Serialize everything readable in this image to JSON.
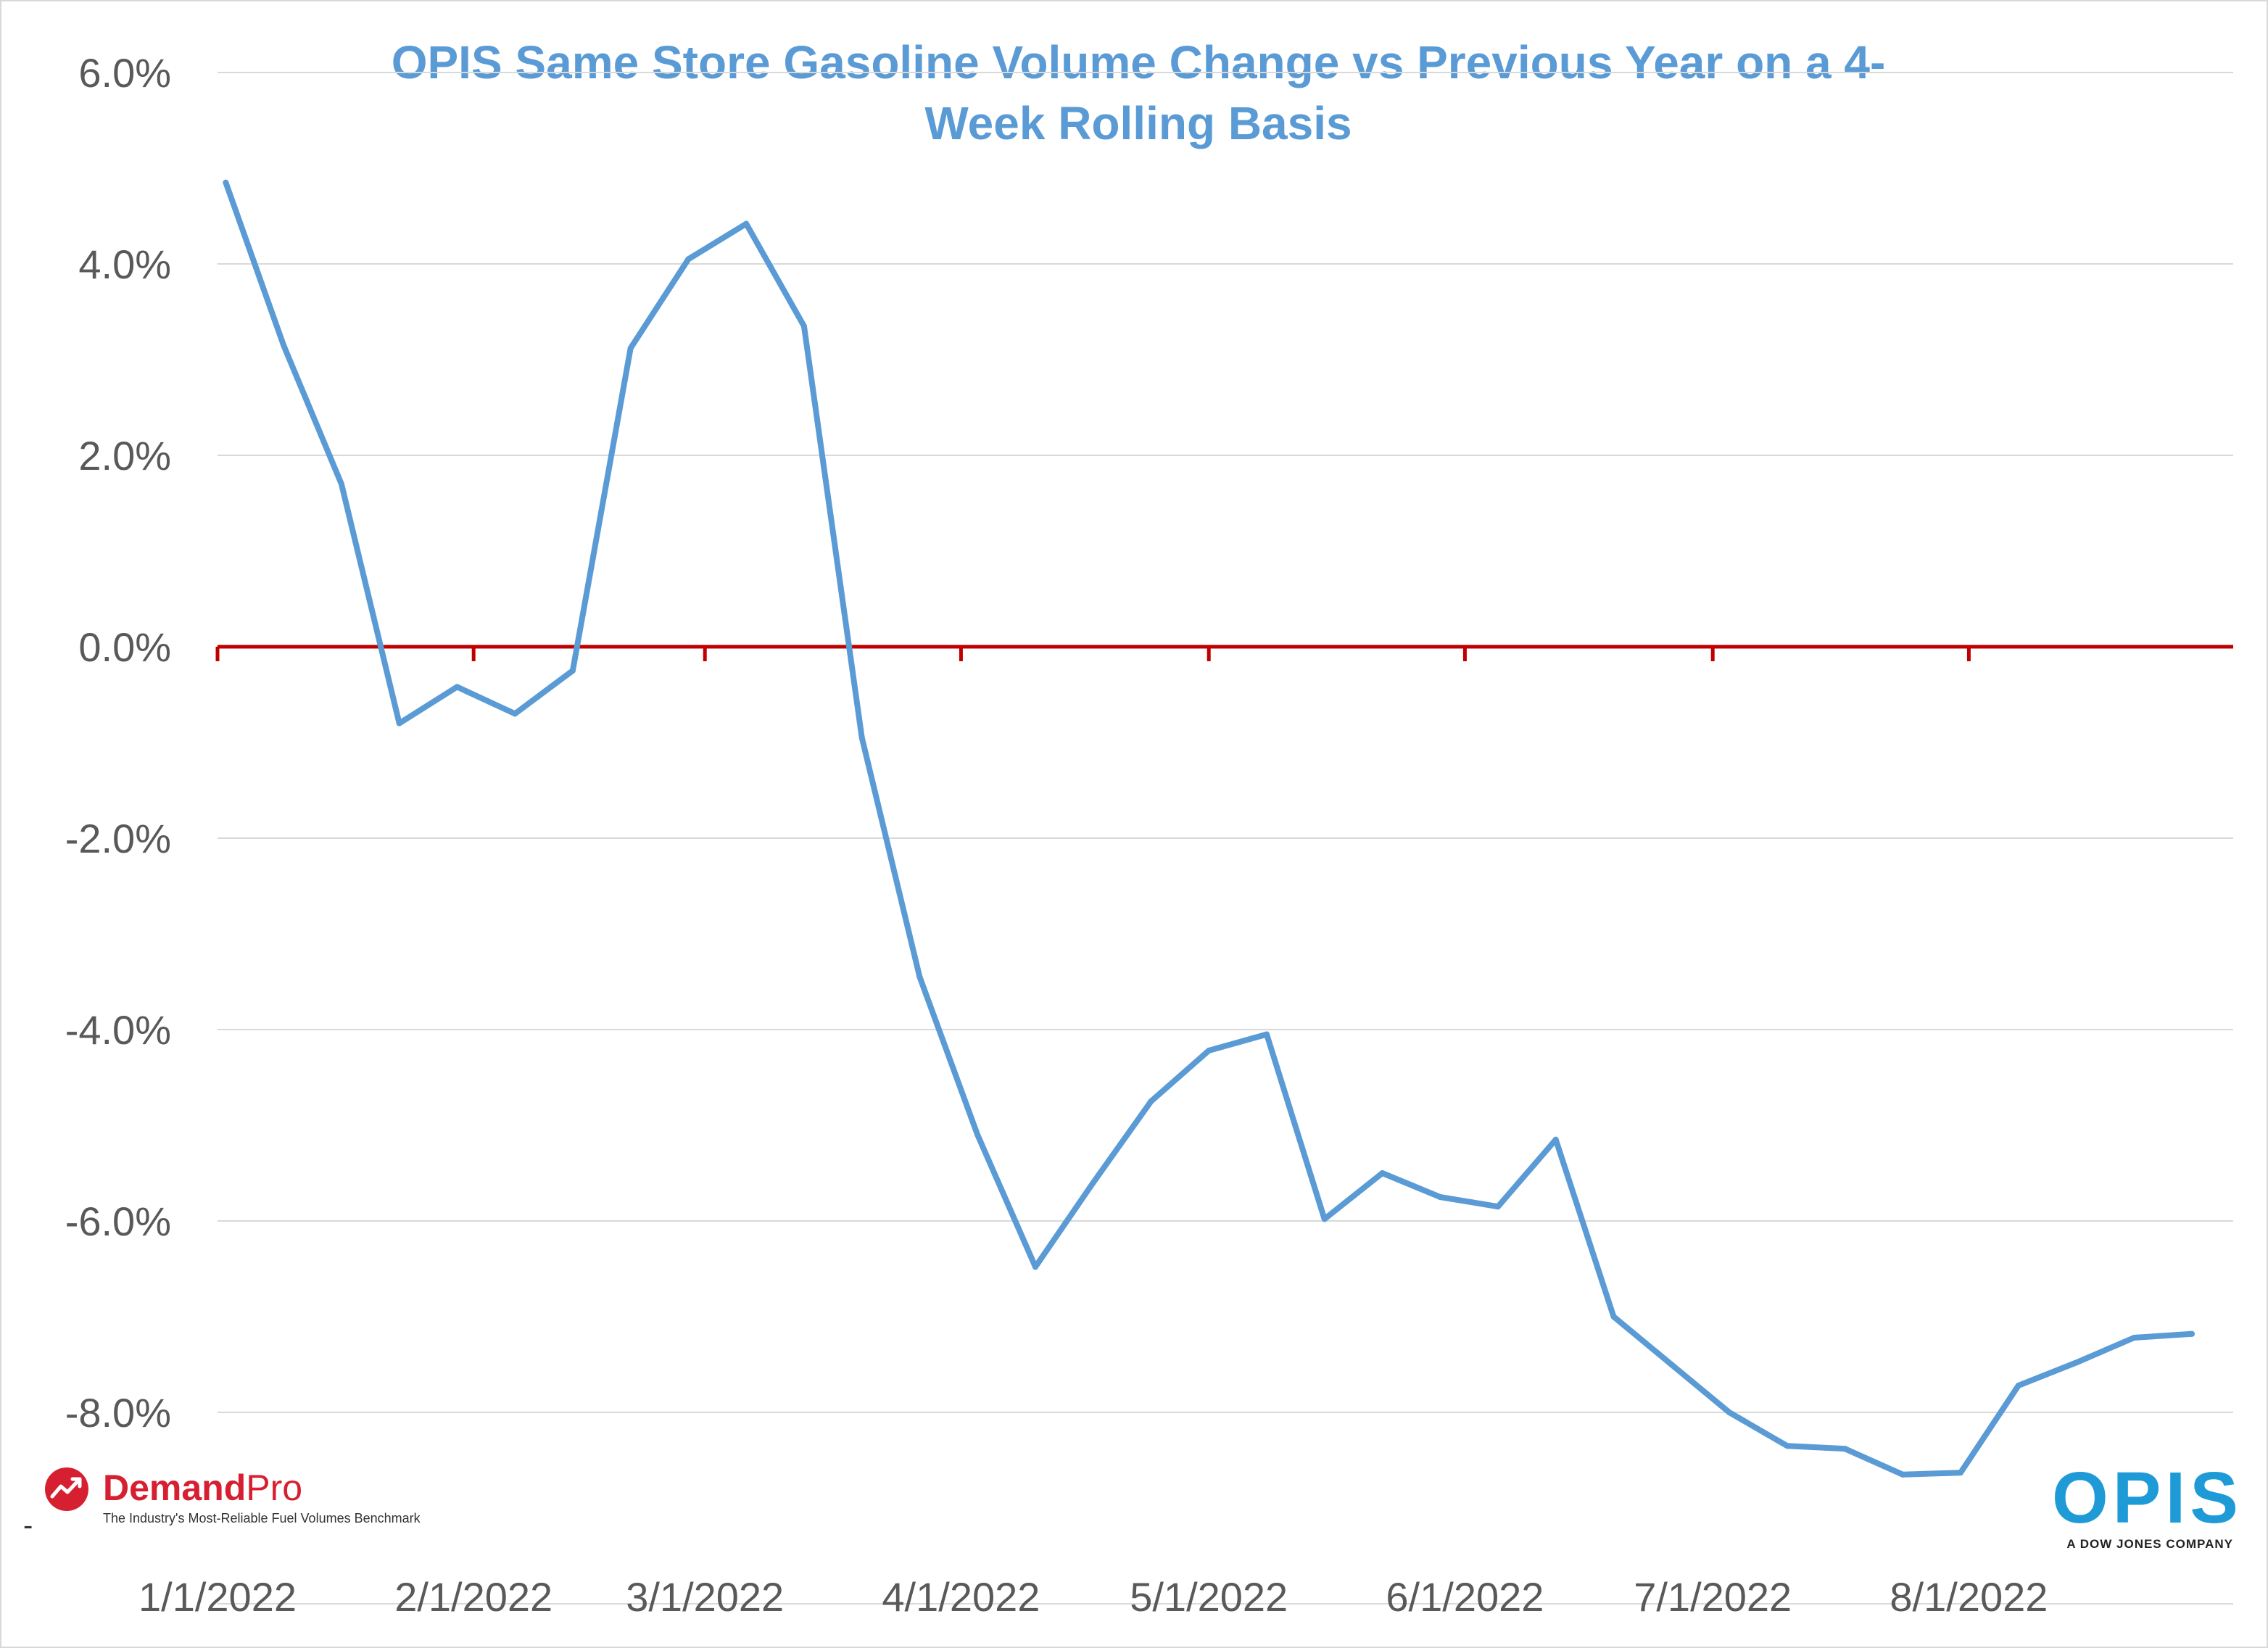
{
  "chart_data": {
    "type": "line",
    "title": "OPIS Same Store Gasoline Volume Change vs Previous Year on a 4-Week Rolling Basis",
    "title_lines": [
      "OPIS Same Store Gasoline Volume Change vs Previous Year on a 4-",
      "Week Rolling Basis"
    ],
    "xlabel": "",
    "ylabel": "",
    "ylim": [
      -10.0,
      6.0
    ],
    "yticks": [
      6.0,
      4.0,
      2.0,
      0.0,
      -2.0,
      -4.0,
      -6.0,
      -8.0
    ],
    "ytick_labels": [
      "6.0%",
      "4.0%",
      "2.0%",
      "0.0%",
      "-2.0%",
      "-4.0%",
      "-6.0%",
      "-8.0%"
    ],
    "xlim": [
      "2022-01-01",
      "2022-09-02"
    ],
    "xtick_labels": [
      "1/1/2022",
      "2/1/2022",
      "3/1/2022",
      "4/1/2022",
      "5/1/2022",
      "6/1/2022",
      "7/1/2022",
      "8/1/2022"
    ],
    "xtick_dates": [
      "2022-01-01",
      "2022-02-01",
      "2022-03-01",
      "2022-04-01",
      "2022-05-01",
      "2022-06-01",
      "2022-07-01",
      "2022-08-01"
    ],
    "grid": true,
    "legend": "none",
    "zero_line_color": "#c00000",
    "series": [
      {
        "color": "#5b9bd5",
        "x": [
          "2022-01-02",
          "2022-01-09",
          "2022-01-16",
          "2022-01-23",
          "2022-01-30",
          "2022-02-06",
          "2022-02-13",
          "2022-02-20",
          "2022-02-27",
          "2022-03-06",
          "2022-03-13",
          "2022-03-20",
          "2022-03-27",
          "2022-04-03",
          "2022-04-10",
          "2022-04-17",
          "2022-04-24",
          "2022-05-01",
          "2022-05-08",
          "2022-05-15",
          "2022-05-22",
          "2022-05-29",
          "2022-06-05",
          "2022-06-12",
          "2022-06-19",
          "2022-06-26",
          "2022-07-03",
          "2022-07-10",
          "2022-07-17",
          "2022-07-24",
          "2022-07-31",
          "2022-08-07",
          "2022-08-14",
          "2022-08-21",
          "2022-08-28"
        ],
        "values": [
          4.85,
          3.15,
          1.7,
          -0.8,
          -0.42,
          -0.7,
          -0.25,
          3.12,
          4.05,
          4.42,
          3.35,
          -0.95,
          -3.45,
          -5.1,
          -6.48,
          -5.6,
          -4.75,
          -4.22,
          -4.05,
          -5.98,
          -5.5,
          -5.75,
          -5.85,
          -5.15,
          -7.0,
          -7.5,
          -8.0,
          -8.35,
          -8.38,
          -8.65,
          -8.63,
          -7.72,
          -7.48,
          -7.22,
          -7.18
        ]
      }
    ]
  },
  "logos": {
    "demandpro": {
      "name_part1": "Demand",
      "name_part2": "Pro",
      "tagline": "The Industry's Most-Reliable Fuel Volumes Benchmark",
      "color": "#d62031"
    },
    "opis": {
      "wordmark": "OPIS",
      "subtitle": "A DOW JONES COMPANY",
      "color": "#1e9bd7"
    },
    "stray_mark": "-"
  }
}
